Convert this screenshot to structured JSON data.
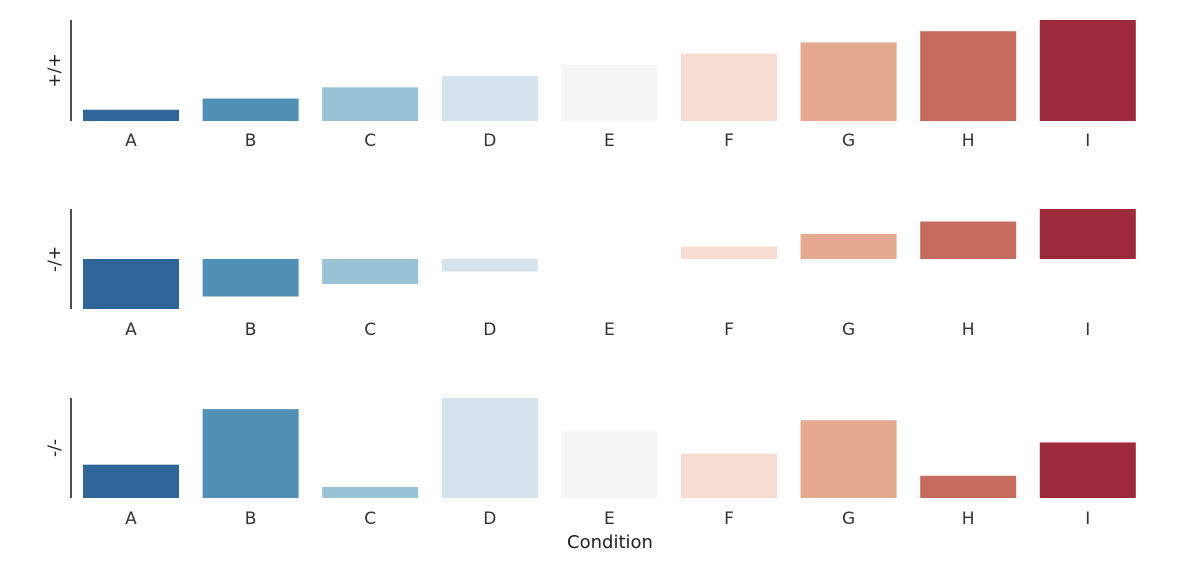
{
  "chart_data": {
    "type": "bar",
    "xlabel": "Condition",
    "categories": [
      "A",
      "B",
      "C",
      "D",
      "E",
      "F",
      "G",
      "H",
      "I"
    ],
    "colors": [
      "#2f6699",
      "#5291b6",
      "#9ac3d6",
      "#d4e3ed",
      "#f5f5f5",
      "#f7ddd0",
      "#e4a98e",
      "#c56c5e",
      "#9c2a3a"
    ],
    "panels": [
      {
        "ylabel": "+/+",
        "ylim": [
          0,
          9
        ],
        "values": [
          1,
          2,
          3,
          4,
          5,
          6,
          7,
          8,
          9
        ]
      },
      {
        "ylabel": "-/+",
        "ylim": [
          -4,
          4
        ],
        "values": [
          -4,
          -3,
          -2,
          -1,
          0,
          1,
          2,
          3,
          4
        ]
      },
      {
        "ylabel": "-/-",
        "ylim": [
          0,
          9
        ],
        "values": [
          3,
          8,
          1,
          9,
          6,
          4,
          7,
          2,
          5
        ]
      }
    ]
  }
}
